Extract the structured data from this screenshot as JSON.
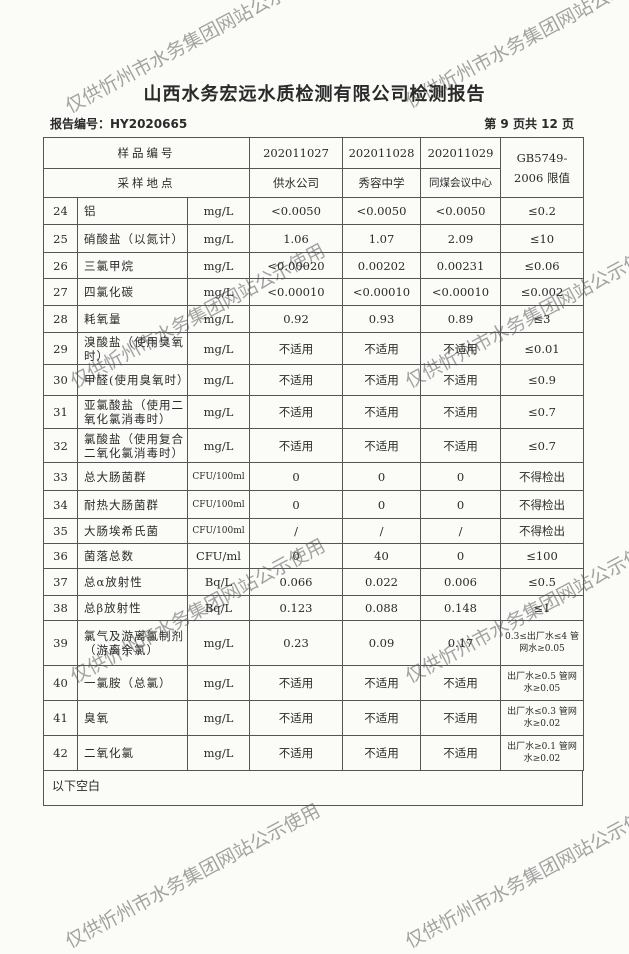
{
  "title": "山西水务宏远水质检测有限公司检测报告",
  "report_no": "报告编号：HY2020665",
  "page_info": "第 9 页共 12 页",
  "watermark": "仅供忻州市水务集团网站公示使用",
  "header": {
    "sample_no_label": "样品编号",
    "site_label": "采样地点",
    "samples": [
      "202011027",
      "202011028",
      "202011029"
    ],
    "sites": [
      "供水公司",
      "秀容中学",
      "同煤会议中心"
    ],
    "limit_label": "GB5749-2006 限值"
  },
  "rows": [
    {
      "no": "24",
      "name": "铝",
      "unit": "mg/L",
      "v": [
        "<0.0050",
        "<0.0050",
        "<0.0050"
      ],
      "limit": "≤0.2"
    },
    {
      "no": "25",
      "name": "硝酸盐（以氮计）",
      "unit": "mg/L",
      "v": [
        "1.06",
        "1.07",
        "2.09"
      ],
      "limit": "≤10"
    },
    {
      "no": "26",
      "name": "三氯甲烷",
      "unit": "mg/L",
      "v": [
        "<0.00020",
        "0.00202",
        "0.00231"
      ],
      "limit": "≤0.06"
    },
    {
      "no": "27",
      "name": "四氯化碳",
      "unit": "mg/L",
      "v": [
        "<0.00010",
        "<0.00010",
        "<0.00010"
      ],
      "limit": "≤0.002"
    },
    {
      "no": "28",
      "name": "耗氧量",
      "unit": "mg/L",
      "v": [
        "0.92",
        "0.93",
        "0.89"
      ],
      "limit": "≤3"
    },
    {
      "no": "29",
      "name": "溴酸盐（使用臭氧时）",
      "unit": "mg/L",
      "v": [
        "不适用",
        "不适用",
        "不适用"
      ],
      "limit": "≤0.01"
    },
    {
      "no": "30",
      "name": "甲醛(使用臭氧时）",
      "unit": "mg/L",
      "v": [
        "不适用",
        "不适用",
        "不适用"
      ],
      "limit": "≤0.9"
    },
    {
      "no": "31",
      "name": "亚氯酸盐（使用二氧化氯消毒时）",
      "unit": "mg/L",
      "v": [
        "不适用",
        "不适用",
        "不适用"
      ],
      "limit": "≤0.7"
    },
    {
      "no": "32",
      "name": "氯酸盐（使用复合二氧化氯消毒时）",
      "unit": "mg/L",
      "v": [
        "不适用",
        "不适用",
        "不适用"
      ],
      "limit": "≤0.7"
    },
    {
      "no": "33",
      "name": "总大肠菌群",
      "unit": "CFU/100ml",
      "v": [
        "0",
        "0",
        "0"
      ],
      "limit": "不得检出"
    },
    {
      "no": "34",
      "name": "耐热大肠菌群",
      "unit": "CFU/100ml",
      "v": [
        "0",
        "0",
        "0"
      ],
      "limit": "不得检出"
    },
    {
      "no": "35",
      "name": "大肠埃希氏菌",
      "unit": "CFU/100ml",
      "v": [
        "/",
        "/",
        "/"
      ],
      "limit": "不得检出"
    },
    {
      "no": "36",
      "name": "菌落总数",
      "unit": "CFU/ml",
      "v": [
        "0",
        "40",
        "0"
      ],
      "limit": "≤100"
    },
    {
      "no": "37",
      "name": "总α放射性",
      "unit": "Bq/L",
      "v": [
        "0.066",
        "0.022",
        "0.006"
      ],
      "limit": "≤0.5"
    },
    {
      "no": "38",
      "name": "总β放射性",
      "unit": "Bq/L",
      "v": [
        "0.123",
        "0.088",
        "0.148"
      ],
      "limit": "≤1"
    },
    {
      "no": "39",
      "name": "氯气及游离氯制剂（游离余氯）",
      "unit": "mg/L",
      "v": [
        "0.23",
        "0.09",
        "0.17"
      ],
      "limit": "0.3≤出厂水≤4 管网水≥0.05"
    },
    {
      "no": "40",
      "name": "一氯胺（总氯）",
      "unit": "mg/L",
      "v": [
        "不适用",
        "不适用",
        "不适用"
      ],
      "limit": "出厂水≥0.5 管网水≥0.05"
    },
    {
      "no": "41",
      "name": "臭氧",
      "unit": "mg/L",
      "v": [
        "不适用",
        "不适用",
        "不适用"
      ],
      "limit": "出厂水≤0.3 管网水≥0.02"
    },
    {
      "no": "42",
      "name": "二氧化氯",
      "unit": "mg/L",
      "v": [
        "不适用",
        "不适用",
        "不适用"
      ],
      "limit": "出厂水≥0.1 管网水≥0.02"
    }
  ],
  "footer_note": "以下空白"
}
